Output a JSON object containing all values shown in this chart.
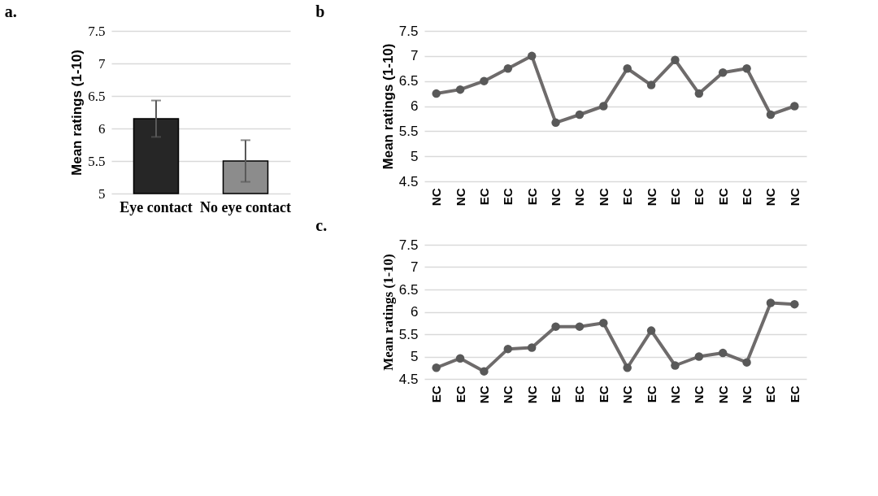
{
  "chart_data": [
    {
      "type": "bar",
      "title": "a.",
      "ylabel": "Mean ratings (1-10)",
      "categories": [
        "Eye contact",
        "No eye contact"
      ],
      "values": [
        6.15,
        5.5
      ],
      "errors": [
        0.28,
        0.32
      ],
      "colors": [
        "#262626",
        "#8c8c8c"
      ],
      "ylim": [
        5,
        7.5
      ],
      "yticks": [
        5,
        5.5,
        6,
        6.5,
        7,
        7.5
      ],
      "grid": "y"
    },
    {
      "type": "line",
      "title": "b",
      "ylabel": "Mean ratings (1-10)",
      "categories": [
        "NC",
        "NC",
        "EC",
        "EC",
        "EC",
        "NC",
        "NC",
        "NC",
        "EC",
        "NC",
        "EC",
        "EC",
        "EC",
        "EC",
        "NC",
        "NC"
      ],
      "series": [
        {
          "color": "#6e6b6b",
          "values": [
            6.25,
            6.33,
            6.5,
            6.75,
            7.0,
            5.67,
            5.83,
            6.0,
            6.75,
            6.42,
            6.92,
            6.25,
            6.67,
            6.75,
            5.83,
            6.0
          ]
        }
      ],
      "ylim": [
        4.5,
        7.5
      ],
      "yticks": [
        4.5,
        5,
        5.5,
        6,
        6.5,
        7,
        7.5
      ],
      "grid": "y",
      "marker": "circle",
      "line_style": "solid"
    },
    {
      "type": "line",
      "title": "c.",
      "ylabel": "Mean ratings (1-10)",
      "categories": [
        "EC",
        "EC",
        "NC",
        "NC",
        "NC",
        "EC",
        "EC",
        "EC",
        "NC",
        "EC",
        "NC",
        "NC",
        "NC",
        "NC",
        "EC",
        "EC"
      ],
      "series": [
        {
          "color": "#6e6b6b",
          "values": [
            4.75,
            4.96,
            4.67,
            5.17,
            5.2,
            5.67,
            5.67,
            5.75,
            4.75,
            5.58,
            4.8,
            5.0,
            5.08,
            4.87,
            6.2,
            6.17
          ]
        }
      ],
      "ylim": [
        4.5,
        7.5
      ],
      "yticks": [
        4.5,
        5,
        5.5,
        6,
        6.5,
        7,
        7.5
      ],
      "grid": "y",
      "marker": "circle",
      "line_style": "solid"
    }
  ]
}
